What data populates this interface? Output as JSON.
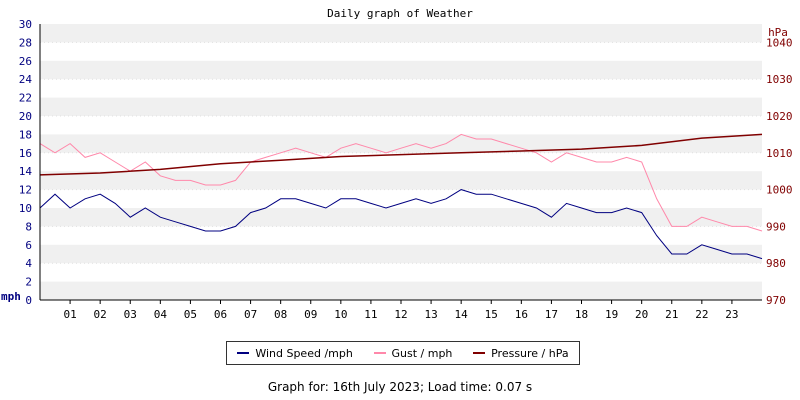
{
  "chart_data": {
    "type": "line",
    "title": "Daily graph of Weather",
    "left_axis": {
      "label": "mph",
      "ylim": [
        0,
        30
      ],
      "ticks": [
        0,
        2,
        4,
        6,
        8,
        10,
        12,
        14,
        16,
        18,
        20,
        22,
        24,
        26,
        28,
        30
      ]
    },
    "right_axis": {
      "label": "hPa",
      "ylim": [
        970,
        1045
      ],
      "ticks": [
        970,
        980,
        990,
        1000,
        1010,
        1020,
        1030,
        1040
      ]
    },
    "x_ticks": [
      "01",
      "02",
      "03",
      "04",
      "05",
      "06",
      "07",
      "08",
      "09",
      "10",
      "11",
      "12",
      "13",
      "14",
      "15",
      "16",
      "17",
      "18",
      "19",
      "20",
      "21",
      "22",
      "23"
    ],
    "xlim": [
      0,
      24
    ],
    "grid": "horizontal bands",
    "legend_position": "bottom",
    "series": [
      {
        "name": "Wind Speed /mph",
        "axis": "left",
        "color": "#000080",
        "x": [
          0,
          0.5,
          1,
          1.5,
          2,
          2.5,
          3,
          3.5,
          4,
          4.5,
          5,
          5.5,
          6,
          6.5,
          7,
          7.5,
          8,
          8.5,
          9,
          9.5,
          10,
          10.5,
          11,
          11.5,
          12,
          12.5,
          13,
          13.5,
          14,
          14.5,
          15,
          15.5,
          16,
          16.5,
          17,
          17.5,
          18,
          18.5,
          19,
          19.5,
          20,
          20.5,
          21,
          21.5,
          22,
          22.5,
          23,
          23.5,
          24
        ],
        "values": [
          10,
          11.5,
          10,
          11,
          11.5,
          10.5,
          9,
          10,
          9,
          8.5,
          8,
          7.5,
          7.5,
          8,
          9.5,
          10,
          11,
          11,
          10.5,
          10,
          11,
          11,
          10.5,
          10,
          10.5,
          11,
          10.5,
          11,
          12,
          11.5,
          11.5,
          11,
          10.5,
          10,
          9,
          10.5,
          10,
          9.5,
          9.5,
          10,
          9.5,
          7,
          5,
          5,
          6,
          5.5,
          5,
          5,
          4.5
        ]
      },
      {
        "name": "Gust / mph",
        "axis": "left",
        "color": "#ff88aa",
        "x": [
          0,
          0.5,
          1,
          1.5,
          2,
          2.5,
          3,
          3.5,
          4,
          4.5,
          5,
          5.5,
          6,
          6.5,
          7,
          7.5,
          8,
          8.5,
          9,
          9.5,
          10,
          10.5,
          11,
          11.5,
          12,
          12.5,
          13,
          13.5,
          14,
          14.5,
          15,
          15.5,
          16,
          16.5,
          17,
          17.5,
          18,
          18.5,
          19,
          19.5,
          20,
          20.5,
          21,
          21.5,
          22,
          22.5,
          23,
          23.5,
          24
        ],
        "values": [
          17,
          16,
          17,
          15.5,
          16,
          15,
          14,
          15,
          13.5,
          13,
          13,
          12.5,
          12.5,
          13,
          15,
          15.5,
          16,
          16.5,
          16,
          15.5,
          16.5,
          17,
          16.5,
          16,
          16.5,
          17,
          16.5,
          17,
          18,
          17.5,
          17.5,
          17,
          16.5,
          16,
          15,
          16,
          15.5,
          15,
          15,
          15.5,
          15,
          11,
          8,
          8,
          9,
          8.5,
          8,
          8,
          7.5
        ]
      },
      {
        "name": "Pressure / hPa",
        "axis": "right",
        "color": "#800000",
        "x": [
          0,
          2,
          4,
          6,
          8,
          10,
          12,
          14,
          16,
          18,
          20,
          22,
          24
        ],
        "values": [
          1004,
          1004.5,
          1005.5,
          1007,
          1008,
          1009,
          1009.5,
          1010,
          1010.5,
          1011,
          1012,
          1014,
          1015
        ]
      }
    ]
  },
  "footer": "Graph for: 16th July 2023; Load time: 0.07 s"
}
